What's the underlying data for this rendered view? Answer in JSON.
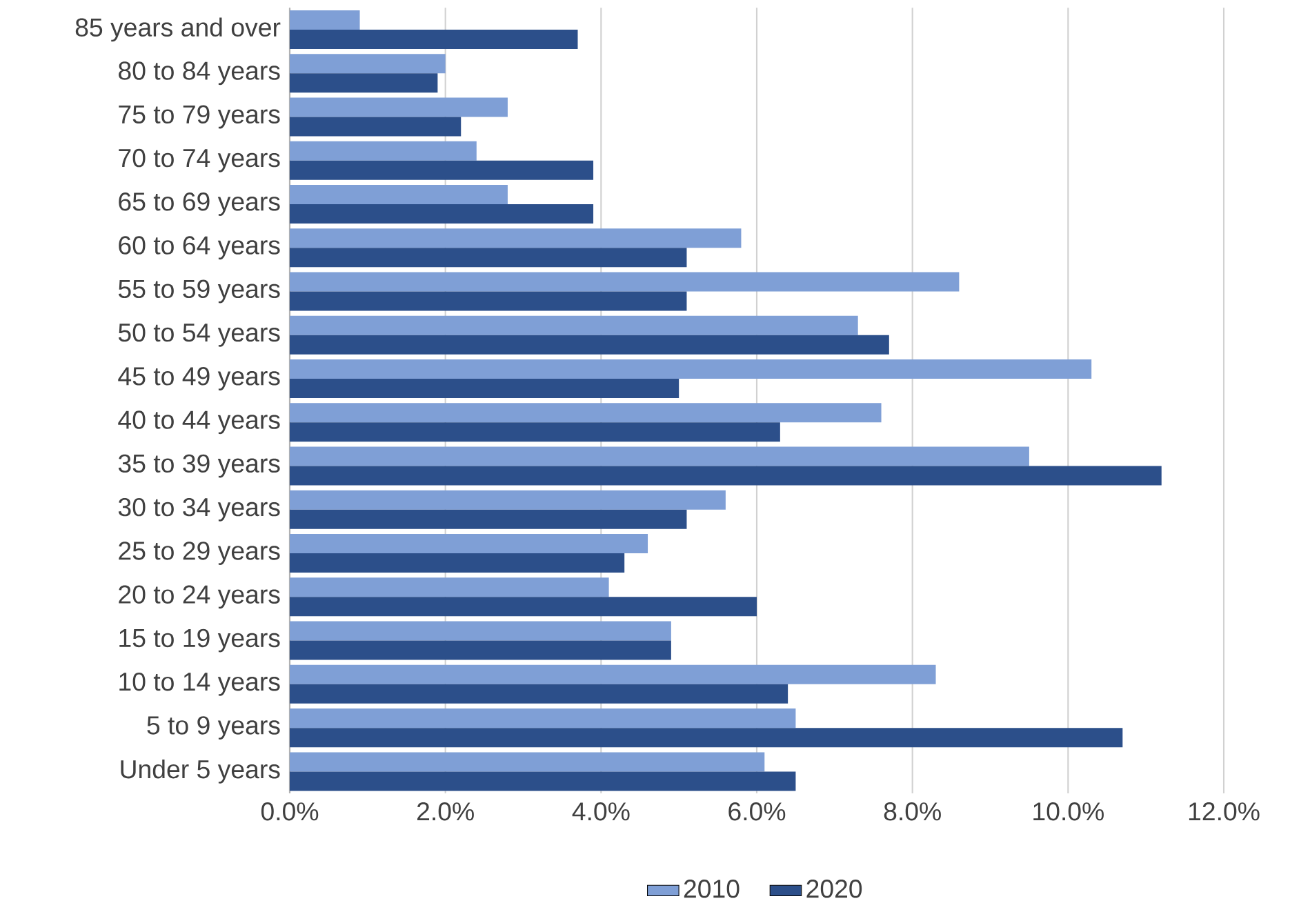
{
  "chart_data": {
    "type": "bar",
    "orientation": "horizontal",
    "categories": [
      "85 years and over",
      "80 to 84 years",
      "75 to 79 years",
      "70 to 74 years",
      "65 to 69 years",
      "60 to 64 years",
      "55 to 59 years",
      "50 to 54 years",
      "45 to 49 years",
      "40 to 44 years",
      "35 to 39 years",
      "30 to 34 years",
      "25 to 29 years",
      "20 to 24 years",
      "15 to 19 years",
      "10 to 14 years",
      "5 to 9 years",
      "Under 5 years"
    ],
    "series": [
      {
        "name": "2010",
        "color": "#7f9fd6",
        "values": [
          0.9,
          2.0,
          2.8,
          2.4,
          2.8,
          5.8,
          8.6,
          7.3,
          10.3,
          7.6,
          9.5,
          5.6,
          4.6,
          4.1,
          4.9,
          8.3,
          6.5,
          6.1
        ]
      },
      {
        "name": "2020",
        "color": "#2c4f8a",
        "values": [
          3.7,
          1.9,
          2.2,
          3.9,
          3.9,
          5.1,
          5.1,
          7.7,
          5.0,
          6.3,
          11.2,
          5.1,
          4.3,
          6.0,
          4.9,
          6.4,
          10.7,
          6.5
        ]
      }
    ],
    "xlim": [
      0,
      12
    ],
    "xticks": [
      {
        "value": 0,
        "label": "0.0%"
      },
      {
        "value": 2,
        "label": "2.0%"
      },
      {
        "value": 4,
        "label": "4.0%"
      },
      {
        "value": 6,
        "label": "6.0%"
      },
      {
        "value": 8,
        "label": "8.0%"
      },
      {
        "value": 10,
        "label": "10.0%"
      },
      {
        "value": 12,
        "label": "12.0%"
      }
    ],
    "grid": "x",
    "legend": "bottom"
  }
}
